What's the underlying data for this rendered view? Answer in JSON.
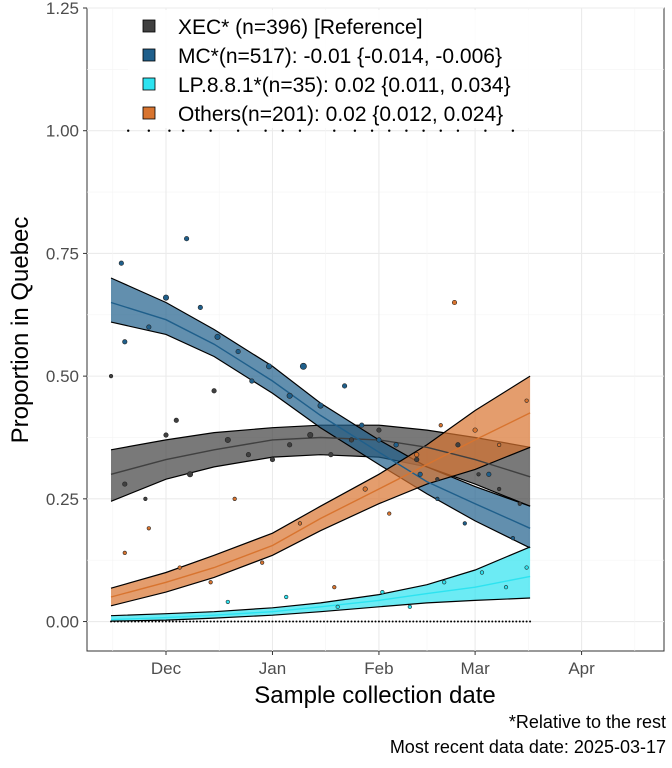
{
  "chart_data": {
    "type": "scatter",
    "title": "",
    "xlabel": "Sample collection date",
    "ylabel": "Proportion in Quebec",
    "x_axis": {
      "type": "date",
      "range": [
        "2024-11-08",
        "2025-04-25"
      ],
      "ticks": [
        {
          "date": "2024-12-01",
          "label": "Dec"
        },
        {
          "date": "2025-01-01",
          "label": "Jan"
        },
        {
          "date": "2025-02-01",
          "label": "Feb"
        },
        {
          "date": "2025-03-01",
          "label": "Mar"
        },
        {
          "date": "2025-04-01",
          "label": "Apr"
        }
      ]
    },
    "y_axis": {
      "range": [
        -0.06,
        1.25
      ],
      "ticks": [
        {
          "value": 0.0,
          "label": "0.00"
        },
        {
          "value": 0.25,
          "label": "0.25"
        },
        {
          "value": 0.5,
          "label": "0.50"
        },
        {
          "value": 0.75,
          "label": "0.75"
        },
        {
          "value": 1.0,
          "label": "1.00"
        },
        {
          "value": 1.25,
          "label": "1.25"
        }
      ]
    },
    "grid": true,
    "legend_position": "top-left inside",
    "series": [
      {
        "name": "XEC* (n=396)  [Reference]",
        "color": "#404040",
        "fit": {
          "x": [
            "2024-11-15",
            "2024-12-01",
            "2024-12-15",
            "2025-01-01",
            "2025-01-15",
            "2025-02-01",
            "2025-02-15",
            "2025-03-01",
            "2025-03-17"
          ],
          "y": [
            0.3,
            0.33,
            0.35,
            0.37,
            0.375,
            0.37,
            0.355,
            0.33,
            0.295
          ],
          "lower": [
            0.245,
            0.29,
            0.315,
            0.335,
            0.34,
            0.335,
            0.315,
            0.28,
            0.235
          ],
          "upper": [
            0.35,
            0.37,
            0.385,
            0.395,
            0.4,
            0.4,
            0.39,
            0.375,
            0.355
          ]
        },
        "points": [
          {
            "x": "2024-11-15",
            "y": 0.5,
            "n": 2
          },
          {
            "x": "2024-11-19",
            "y": 0.28,
            "n": 3
          },
          {
            "x": "2024-11-25",
            "y": 0.25,
            "n": 2
          },
          {
            "x": "2024-12-01",
            "y": 0.38,
            "n": 3
          },
          {
            "x": "2024-12-04",
            "y": 0.41,
            "n": 3
          },
          {
            "x": "2024-12-08",
            "y": 0.3,
            "n": 4
          },
          {
            "x": "2024-12-15",
            "y": 0.47,
            "n": 3
          },
          {
            "x": "2024-12-19",
            "y": 0.37,
            "n": 4
          },
          {
            "x": "2024-12-25",
            "y": 0.34,
            "n": 3
          },
          {
            "x": "2025-01-01",
            "y": 0.33,
            "n": 3
          },
          {
            "x": "2025-01-06",
            "y": 0.36,
            "n": 3
          },
          {
            "x": "2025-01-12",
            "y": 0.38,
            "n": 4
          },
          {
            "x": "2025-01-18",
            "y": 0.34,
            "n": 3
          },
          {
            "x": "2025-01-24",
            "y": 0.37,
            "n": 3
          },
          {
            "x": "2025-02-01",
            "y": 0.39,
            "n": 3
          },
          {
            "x": "2025-02-06",
            "y": 0.36,
            "n": 3
          },
          {
            "x": "2025-02-12",
            "y": 0.33,
            "n": 3
          },
          {
            "x": "2025-02-18",
            "y": 0.29,
            "n": 2
          },
          {
            "x": "2025-02-24",
            "y": 0.36,
            "n": 3
          },
          {
            "x": "2025-03-02",
            "y": 0.3,
            "n": 2
          },
          {
            "x": "2025-03-08",
            "y": 0.27,
            "n": 2
          },
          {
            "x": "2025-03-14",
            "y": 0.24,
            "n": 2
          }
        ]
      },
      {
        "name": "MC*(n=517): -0.01 {-0.014, -0.006}",
        "color": "#1f5f8b",
        "fit": {
          "x": [
            "2024-11-15",
            "2024-12-01",
            "2024-12-15",
            "2025-01-01",
            "2025-01-15",
            "2025-02-01",
            "2025-02-15",
            "2025-03-01",
            "2025-03-17"
          ],
          "y": [
            0.65,
            0.615,
            0.565,
            0.49,
            0.42,
            0.345,
            0.285,
            0.24,
            0.19
          ],
          "lower": [
            0.61,
            0.585,
            0.54,
            0.465,
            0.395,
            0.32,
            0.26,
            0.205,
            0.15
          ],
          "upper": [
            0.7,
            0.65,
            0.595,
            0.52,
            0.445,
            0.37,
            0.315,
            0.275,
            0.235
          ]
        },
        "points": [
          {
            "x": "2024-11-18",
            "y": 0.73,
            "n": 3
          },
          {
            "x": "2024-11-19",
            "y": 0.57,
            "n": 3
          },
          {
            "x": "2024-11-26",
            "y": 0.6,
            "n": 3
          },
          {
            "x": "2024-12-01",
            "y": 0.66,
            "n": 4
          },
          {
            "x": "2024-12-07",
            "y": 0.78,
            "n": 3
          },
          {
            "x": "2024-12-11",
            "y": 0.64,
            "n": 3
          },
          {
            "x": "2024-12-16",
            "y": 0.58,
            "n": 4
          },
          {
            "x": "2024-12-22",
            "y": 0.55,
            "n": 3
          },
          {
            "x": "2024-12-26",
            "y": 0.49,
            "n": 3
          },
          {
            "x": "2024-12-31",
            "y": 0.52,
            "n": 4
          },
          {
            "x": "2025-01-06",
            "y": 0.46,
            "n": 4
          },
          {
            "x": "2025-01-10",
            "y": 0.52,
            "n": 5
          },
          {
            "x": "2025-01-15",
            "y": 0.44,
            "n": 4
          },
          {
            "x": "2025-01-22",
            "y": 0.48,
            "n": 3
          },
          {
            "x": "2025-01-27",
            "y": 0.4,
            "n": 3
          },
          {
            "x": "2025-02-01",
            "y": 0.37,
            "n": 3
          },
          {
            "x": "2025-02-06",
            "y": 0.36,
            "n": 3
          },
          {
            "x": "2025-02-13",
            "y": 0.3,
            "n": 3
          },
          {
            "x": "2025-02-18",
            "y": 0.25,
            "n": 2
          },
          {
            "x": "2025-02-26",
            "y": 0.2,
            "n": 2
          },
          {
            "x": "2025-03-05",
            "y": 0.3,
            "n": 3
          },
          {
            "x": "2025-03-12",
            "y": 0.17,
            "n": 2
          }
        ]
      },
      {
        "name": "LP.8.8.1*(n=35): 0.02 {0.011, 0.034}",
        "color": "#2de3f0",
        "fit": {
          "x": [
            "2024-11-15",
            "2024-12-01",
            "2024-12-15",
            "2025-01-01",
            "2025-01-15",
            "2025-02-01",
            "2025-02-15",
            "2025-03-01",
            "2025-03-17"
          ],
          "y": [
            0.004,
            0.008,
            0.013,
            0.02,
            0.03,
            0.043,
            0.057,
            0.07,
            0.092
          ],
          "lower": [
            0.001,
            0.003,
            0.007,
            0.013,
            0.02,
            0.03,
            0.038,
            0.043,
            0.048
          ],
          "upper": [
            0.012,
            0.016,
            0.02,
            0.028,
            0.038,
            0.055,
            0.075,
            0.105,
            0.152
          ]
        },
        "points": [
          {
            "x": "2024-12-19",
            "y": 0.04,
            "n": 2
          },
          {
            "x": "2025-01-05",
            "y": 0.05,
            "n": 2
          },
          {
            "x": "2025-01-20",
            "y": 0.03,
            "n": 2
          },
          {
            "x": "2025-02-02",
            "y": 0.06,
            "n": 2
          },
          {
            "x": "2025-02-10",
            "y": 0.03,
            "n": 2
          },
          {
            "x": "2025-02-20",
            "y": 0.08,
            "n": 2
          },
          {
            "x": "2025-03-03",
            "y": 0.1,
            "n": 2
          },
          {
            "x": "2025-03-10",
            "y": 0.07,
            "n": 2
          },
          {
            "x": "2025-03-16",
            "y": 0.11,
            "n": 2
          }
        ]
      },
      {
        "name": "Others(n=201): 0.02 {0.012, 0.024}",
        "color": "#d8742f",
        "fit": {
          "x": [
            "2024-11-15",
            "2024-12-01",
            "2024-12-15",
            "2025-01-01",
            "2025-01-15",
            "2025-02-01",
            "2025-02-15",
            "2025-03-01",
            "2025-03-17"
          ],
          "y": [
            0.05,
            0.08,
            0.11,
            0.155,
            0.21,
            0.27,
            0.32,
            0.37,
            0.425
          ],
          "lower": [
            0.032,
            0.06,
            0.09,
            0.135,
            0.185,
            0.24,
            0.28,
            0.31,
            0.355
          ],
          "upper": [
            0.068,
            0.1,
            0.135,
            0.18,
            0.235,
            0.3,
            0.36,
            0.43,
            0.5
          ]
        },
        "points": [
          {
            "x": "2024-11-19",
            "y": 0.14,
            "n": 2
          },
          {
            "x": "2024-11-26",
            "y": 0.19,
            "n": 2
          },
          {
            "x": "2024-12-05",
            "y": 0.11,
            "n": 2
          },
          {
            "x": "2024-12-14",
            "y": 0.08,
            "n": 2
          },
          {
            "x": "2024-12-21",
            "y": 0.25,
            "n": 2
          },
          {
            "x": "2024-12-29",
            "y": 0.12,
            "n": 2
          },
          {
            "x": "2025-01-09",
            "y": 0.2,
            "n": 2
          },
          {
            "x": "2025-01-19",
            "y": 0.07,
            "n": 2
          },
          {
            "x": "2025-01-28",
            "y": 0.27,
            "n": 3
          },
          {
            "x": "2025-02-04",
            "y": 0.22,
            "n": 2
          },
          {
            "x": "2025-02-12",
            "y": 0.34,
            "n": 3
          },
          {
            "x": "2025-02-19",
            "y": 0.4,
            "n": 2
          },
          {
            "x": "2025-02-23",
            "y": 0.65,
            "n": 3
          },
          {
            "x": "2025-03-01",
            "y": 0.39,
            "n": 3
          },
          {
            "x": "2025-03-08",
            "y": 0.36,
            "n": 2
          },
          {
            "x": "2025-03-16",
            "y": 0.45,
            "n": 2
          }
        ]
      }
    ],
    "reference_dots": {
      "color": "#000000",
      "top_dates": [
        "2024-11-20",
        "2024-11-26",
        "2024-12-02",
        "2024-12-06",
        "2024-12-14",
        "2024-12-22",
        "2024-12-30",
        "2025-01-04",
        "2025-01-09",
        "2025-01-19",
        "2025-01-25",
        "2025-01-30",
        "2025-02-04",
        "2025-02-09",
        "2025-02-14",
        "2025-02-19",
        "2025-02-24",
        "2025-03-04",
        "2025-03-12"
      ],
      "bottom_range": [
        "2024-11-15",
        "2025-03-17"
      ]
    }
  },
  "caption": {
    "note": "*Relative to the rest",
    "date_line": "Most recent data date: 2025-03-17"
  }
}
